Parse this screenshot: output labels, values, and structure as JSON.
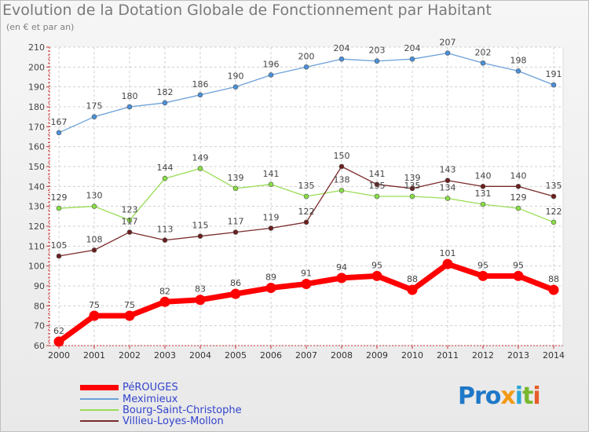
{
  "title": "Evolution de la Dotation Globale de Fonctionnement par Habitant",
  "subtitle": "(en € et par an)",
  "logo": {
    "text": "Proxiti",
    "parts": [
      "Pro",
      "x",
      "i",
      "t",
      "i"
    ]
  },
  "chart_data": {
    "type": "line",
    "x": [
      "2000",
      "2001",
      "2002",
      "2003",
      "2004",
      "2005",
      "2006",
      "2007",
      "2008",
      "2009",
      "2010",
      "2011",
      "2012",
      "2013",
      "2014"
    ],
    "ylim": [
      60,
      210
    ],
    "yticks": [
      60,
      70,
      80,
      90,
      100,
      110,
      120,
      130,
      140,
      150,
      160,
      170,
      180,
      190,
      200,
      210
    ],
    "grid": true,
    "legend_position": "bottom-left",
    "series": [
      {
        "name": "PéROUGES",
        "color": "#ff0000",
        "values": [
          62,
          75,
          75,
          82,
          83,
          86,
          89,
          91,
          94,
          95,
          88,
          101,
          95,
          95,
          88
        ]
      },
      {
        "name": "Meximieux",
        "color": "#6aa0d8",
        "values": [
          167,
          175,
          180,
          182,
          186,
          190,
          196,
          200,
          204,
          203,
          204,
          207,
          202,
          198,
          191
        ]
      },
      {
        "name": "Bourg-Saint-Christophe",
        "color": "#99dd55",
        "values": [
          129,
          130,
          123,
          144,
          149,
          139,
          141,
          135,
          138,
          135,
          135,
          134,
          131,
          129,
          122
        ]
      },
      {
        "name": "Villieu-Loyes-Mollon",
        "color": "#7a2a2a",
        "values": [
          105,
          108,
          117,
          113,
          115,
          117,
          119,
          122,
          150,
          141,
          139,
          143,
          140,
          140,
          135
        ]
      }
    ]
  }
}
